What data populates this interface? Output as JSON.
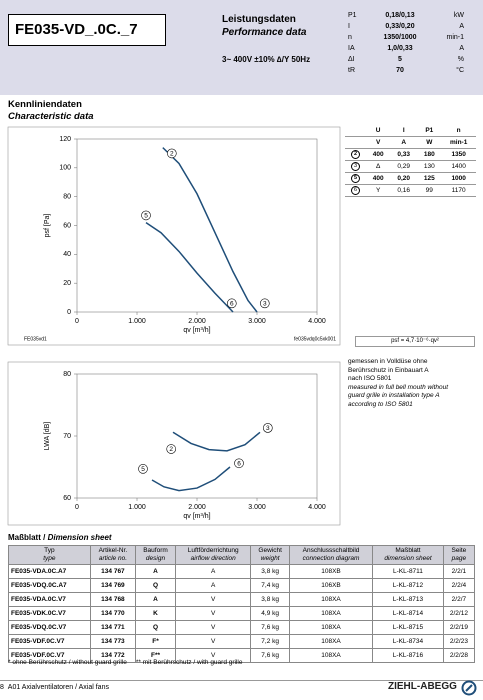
{
  "header": {
    "code": "FE035-VD_.0C._7",
    "title_de": "Leistungsdaten",
    "title_en": "Performance data",
    "supply": "3~ 400V ±10% ∆/Y 50Hz",
    "specs": [
      [
        "P1",
        "0,18/0,13",
        "kW"
      ],
      [
        "I",
        "0,33/0,20",
        "A"
      ],
      [
        "n",
        "1350/1000",
        "min-1"
      ],
      [
        "IA",
        "1,0/0,33",
        "A"
      ],
      [
        "ΔI",
        "5",
        "%"
      ],
      [
        "tR",
        "70",
        "°C"
      ]
    ]
  },
  "section": {
    "title_de": "Kennliniendaten",
    "title_en": "Characteristic data"
  },
  "chart_data": [
    {
      "type": "line",
      "ylabel": "psf [Pa]",
      "xlabel": "qv [m³/h]",
      "source_left": "FE035vd1",
      "source_right": "fe035vdq0c5xk001",
      "xlim": [
        0,
        4000
      ],
      "xticks": [
        0,
        {
          "value": 1000,
          "label": "1.000"
        },
        {
          "value": 2000,
          "label": "2.000"
        },
        {
          "value": 3000,
          "label": "3.000"
        },
        {
          "value": 4000,
          "label": "4.000"
        }
      ],
      "ylim": [
        0,
        120
      ],
      "yticks": [
        0,
        20,
        40,
        60,
        80,
        100,
        120
      ],
      "series": [
        {
          "color": "#1f4e79",
          "x": [
            1430,
            1700,
            2000,
            2300,
            2600,
            2850,
            3000
          ],
          "values": [
            114,
            103,
            82,
            55,
            28,
            8,
            0
          ]
        },
        {
          "color": "#1f4e79",
          "x": [
            1150,
            1400,
            1700,
            2000,
            2300,
            2600
          ],
          "values": [
            62,
            55,
            42,
            27,
            13,
            0
          ]
        }
      ],
      "points": [
        {
          "label": "2",
          "x": 1580,
          "y": 110
        },
        {
          "label": "5",
          "x": 1150,
          "y": 67
        },
        {
          "label": "6",
          "x": 2580,
          "y": 6
        },
        {
          "label": "3",
          "x": 3130,
          "y": 6
        }
      ]
    },
    {
      "type": "line",
      "ylabel": "LWA [dB]",
      "xlabel": "qv [m³/h]",
      "xlim": [
        0,
        4000
      ],
      "xticks": [
        0,
        {
          "value": 1000,
          "label": "1.000"
        },
        {
          "value": 2000,
          "label": "2.000"
        },
        {
          "value": 3000,
          "label": "3.000"
        },
        {
          "value": 4000,
          "label": "4.000"
        }
      ],
      "ylim": [
        60,
        80
      ],
      "yticks": [
        60,
        70,
        80
      ],
      "series": [
        {
          "color": "#1f4e79",
          "x": [
            1600,
            1900,
            2200,
            2500,
            2800,
            3050
          ],
          "values": [
            70.6,
            68.8,
            67.8,
            67.6,
            68.6,
            70.6
          ]
        },
        {
          "color": "#1f4e79",
          "x": [
            1250,
            1450,
            1700,
            2000,
            2300,
            2550
          ],
          "values": [
            62.9,
            61.8,
            61.2,
            61.6,
            63.0,
            65.0
          ]
        }
      ],
      "points": [
        {
          "label": "2",
          "x": 1570,
          "y": 67.9
        },
        {
          "label": "3",
          "x": 3180,
          "y": 71.3
        },
        {
          "label": "5",
          "x": 1100,
          "y": 64.7
        },
        {
          "label": "6",
          "x": 2700,
          "y": 65.6
        }
      ]
    }
  ],
  "op_table": {
    "head": [
      "U",
      "I",
      "P1",
      "n"
    ],
    "units": [
      "V",
      "A",
      "W",
      "min-1"
    ],
    "rows": [
      [
        "2",
        "400",
        "0,33",
        "180",
        "1350"
      ],
      [
        "3",
        "Δ",
        "0,29",
        "130",
        "1400"
      ],
      [
        "5",
        "400",
        "0,20",
        "125",
        "1000"
      ],
      [
        "6",
        "Y",
        "0,16",
        "99",
        "1170"
      ]
    ]
  },
  "formula": "psf = 4,7·10⁻⁶·qv²",
  "note": {
    "de": [
      "gemessen in Volldüse ohne",
      "Berührschutz in Einbauart A",
      "nach ISO 5801"
    ],
    "en": [
      "measured in full bell mouth without",
      "guard grille in installation type A",
      "according to ISO 5801"
    ]
  },
  "dimension": {
    "title_de": "Maßblatt",
    "title_en": "Dimension sheet",
    "head": [
      [
        "Typ",
        "type"
      ],
      [
        "Artikel-Nr.",
        "article no."
      ],
      [
        "Bauform",
        "design"
      ],
      [
        "Luftförderrichtung",
        "airflow direction"
      ],
      [
        "Gewicht",
        "weight"
      ],
      [
        "Anschlussschaltbild",
        "connection diagram"
      ],
      [
        "Maßblatt",
        "dimension sheet"
      ],
      [
        "Seite",
        "page"
      ]
    ],
    "rows": [
      [
        "FE035-VDA.0C.A7",
        "134 767",
        "A",
        "A",
        "3,8 kg",
        "108XB",
        "L-KL-8711",
        "2/2/1"
      ],
      [
        "FE035-VDQ.0C.A7",
        "134 769",
        "Q",
        "A",
        "7,4 kg",
        "106XB",
        "L-KL-8712",
        "2/2/4"
      ],
      [
        "FE035-VDA.0C.V7",
        "134 768",
        "A",
        "V",
        "3,8 kg",
        "108XA",
        "L-KL-8713",
        "2/2/7"
      ],
      [
        "FE035-VDK.0C.V7",
        "134 770",
        "K",
        "V",
        "4,9 kg",
        "108XA",
        "L-KL-8714",
        "2/2/12"
      ],
      [
        "FE035-VDQ.0C.V7",
        "134 771",
        "Q",
        "V",
        "7,6 kg",
        "108XA",
        "L-KL-8715",
        "2/2/19"
      ],
      [
        "FE035-VDF.0C.V7",
        "134 773",
        "F*",
        "V",
        "7,2 kg",
        "108XA",
        "L-KL-8734",
        "2/2/23"
      ],
      [
        "FE035-VDF.0C.V7",
        "134 772",
        "F**",
        "V",
        "7,6 kg",
        "108XA",
        "L-KL-8716",
        "2/2/28"
      ]
    ]
  },
  "footnote": [
    "* ohne Berührschutz / without guard grille",
    "** mit Berührschutz / with guard grille"
  ],
  "footer": {
    "page": "8",
    "text": "A01 Axialventilatoren / Axial fans",
    "brand": "ZIEHL-ABEGG"
  }
}
